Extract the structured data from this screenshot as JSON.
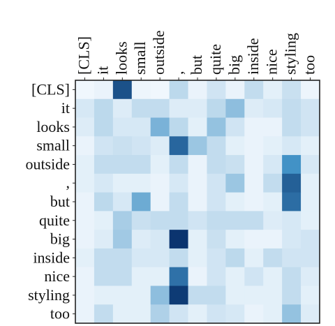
{
  "chart_data": {
    "type": "heatmap",
    "title": "",
    "xlabel": "",
    "ylabel": "",
    "x_labels": [
      "[CLS]",
      "it",
      "looks",
      "small",
      "outside",
      ",",
      "but",
      "quite",
      "big",
      "inside",
      "nice",
      "styling",
      "too"
    ],
    "y_labels": [
      "[CLS]",
      "it",
      "looks",
      "small",
      "outside",
      ",",
      "but",
      "quite",
      "big",
      "inside",
      "nice",
      "styling",
      "too"
    ],
    "value_range": [
      0,
      1
    ],
    "colormap": [
      "#f7fbff",
      "#08306b"
    ],
    "grid": false,
    "values": [
      [
        0.02,
        0.04,
        0.85,
        0.03,
        0.02,
        0.18,
        0.04,
        0.12,
        0.04,
        0.16,
        0.06,
        0.14,
        0.03
      ],
      [
        0.1,
        0.18,
        0.08,
        0.16,
        0.16,
        0.08,
        0.08,
        0.18,
        0.32,
        0.08,
        0.1,
        0.16,
        0.12
      ],
      [
        0.08,
        0.18,
        0.1,
        0.1,
        0.38,
        0.18,
        0.06,
        0.3,
        0.12,
        0.04,
        0.04,
        0.16,
        0.12
      ],
      [
        0.04,
        0.12,
        0.14,
        0.12,
        0.08,
        0.75,
        0.28,
        0.16,
        0.06,
        0.04,
        0.06,
        0.1,
        0.06
      ],
      [
        0.06,
        0.16,
        0.16,
        0.16,
        0.06,
        0.16,
        0.04,
        0.16,
        0.14,
        0.04,
        0.1,
        0.55,
        0.1
      ],
      [
        0.06,
        0.1,
        0.06,
        0.06,
        0.04,
        0.1,
        0.04,
        0.12,
        0.28,
        0.04,
        0.16,
        0.78,
        0.06
      ],
      [
        0.04,
        0.18,
        0.1,
        0.42,
        0.04,
        0.16,
        0.04,
        0.12,
        0.06,
        0.04,
        0.06,
        0.72,
        0.06
      ],
      [
        0.04,
        0.06,
        0.24,
        0.14,
        0.16,
        0.16,
        0.12,
        0.16,
        0.16,
        0.16,
        0.08,
        0.1,
        0.06
      ],
      [
        0.04,
        0.08,
        0.26,
        0.08,
        0.1,
        0.98,
        0.06,
        0.14,
        0.06,
        0.04,
        0.04,
        0.1,
        0.12
      ],
      [
        0.06,
        0.16,
        0.16,
        0.1,
        0.1,
        0.16,
        0.06,
        0.12,
        0.18,
        0.06,
        0.16,
        0.12,
        0.12
      ],
      [
        0.04,
        0.16,
        0.16,
        0.06,
        0.06,
        0.7,
        0.04,
        0.12,
        0.06,
        0.12,
        0.06,
        0.16,
        0.08
      ],
      [
        0.04,
        0.06,
        0.06,
        0.06,
        0.32,
        0.95,
        0.16,
        0.16,
        0.06,
        0.06,
        0.06,
        0.16,
        0.06
      ],
      [
        0.04,
        0.16,
        0.06,
        0.06,
        0.22,
        0.12,
        0.06,
        0.12,
        0.1,
        0.04,
        0.06,
        0.3,
        0.08
      ]
    ]
  }
}
